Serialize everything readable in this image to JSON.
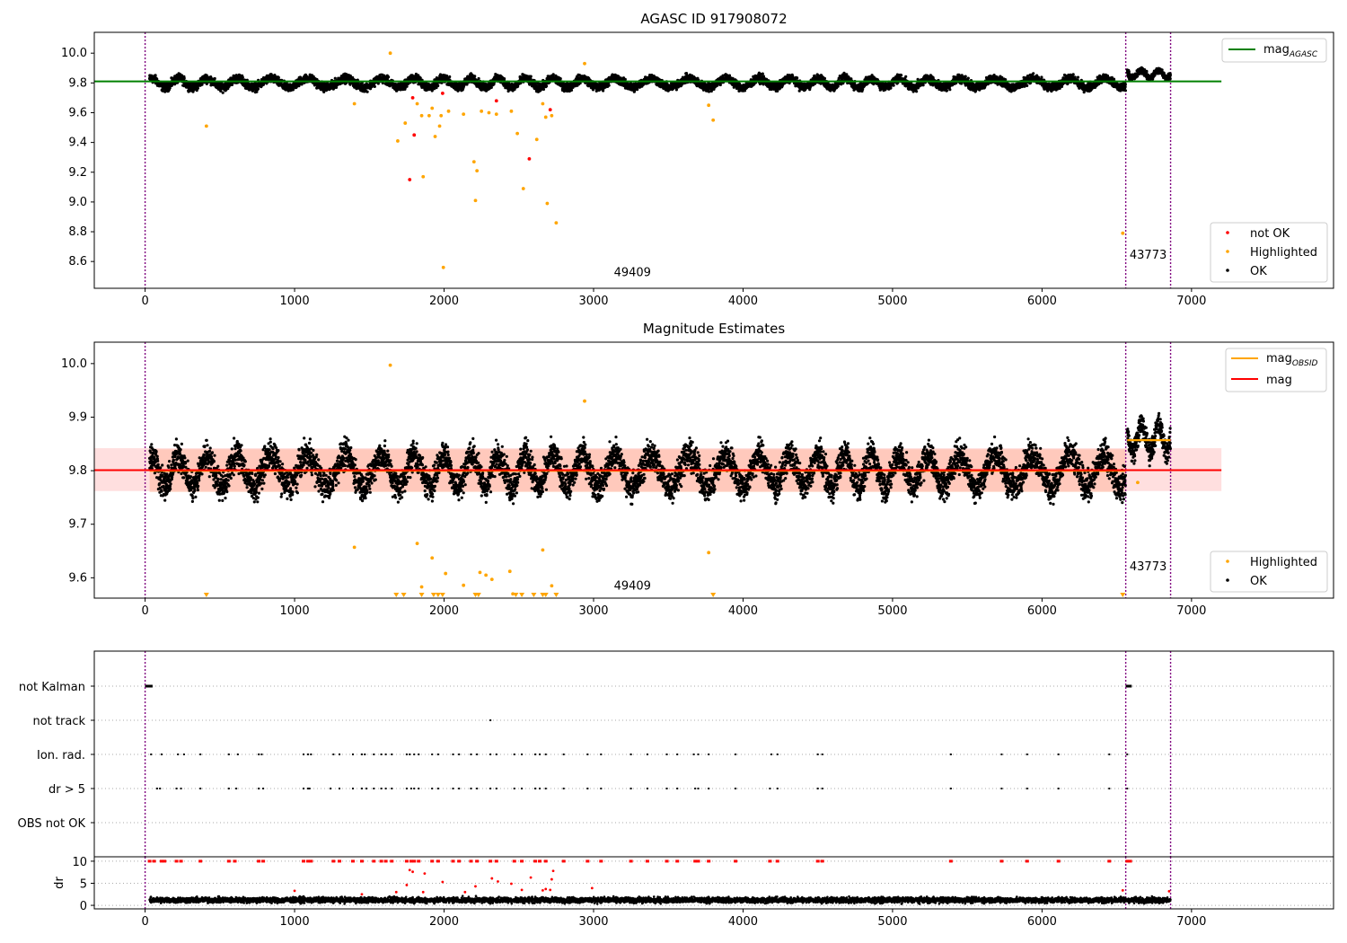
{
  "chart_data": [
    {
      "type": "scatter",
      "title": "AGASC ID 917908072",
      "xlabel": "",
      "ylabel": "",
      "xlim": [
        -340,
        7950
      ],
      "ylim": [
        8.42,
        10.14
      ],
      "xticks": [
        0,
        1000,
        2000,
        3000,
        4000,
        5000,
        6000,
        7000
      ],
      "yticks": [
        8.6,
        8.8,
        9.0,
        9.2,
        9.4,
        9.6,
        9.8,
        10.0
      ],
      "ytick_labels": [
        "8.6",
        "8.8",
        "9.0",
        "9.2",
        "9.4",
        "9.6",
        "9.8",
        "10.0"
      ],
      "grid": false,
      "reference_lines": [
        {
          "name": "mag_AGASC",
          "name_main": "mag",
          "name_sub": "AGASC",
          "value": 9.81,
          "x_range": [
            -340,
            7200
          ],
          "color": "#008000"
        }
      ],
      "obsid_boundaries": [
        0,
        6560,
        6860
      ],
      "obsid_labels": [
        {
          "text": "49409",
          "x": 3260,
          "y": 8.5
        },
        {
          "text": "43773",
          "x": 6710,
          "y": 8.62
        }
      ],
      "series": [
        {
          "name": "not OK",
          "color": "#ff0000",
          "points": [
            [
              1770,
              9.15
            ],
            [
              1800,
              9.45
            ],
            [
              1790,
              9.7
            ],
            [
              1990,
              9.73
            ],
            [
              2350,
              9.68
            ],
            [
              2570,
              9.29
            ],
            [
              2710,
              9.62
            ]
          ]
        },
        {
          "name": "Highlighted",
          "color": "#ffa500",
          "points": [
            [
              410,
              9.51
            ],
            [
              1400,
              9.66
            ],
            [
              1640,
              10.0
            ],
            [
              1690,
              9.41
            ],
            [
              1740,
              9.53
            ],
            [
              1820,
              9.66
            ],
            [
              1850,
              9.58
            ],
            [
              1860,
              9.17
            ],
            [
              1900,
              9.58
            ],
            [
              1920,
              9.63
            ],
            [
              1940,
              9.44
            ],
            [
              1970,
              9.51
            ],
            [
              1980,
              9.58
            ],
            [
              1995,
              8.56
            ],
            [
              2030,
              9.61
            ],
            [
              2130,
              9.59
            ],
            [
              2200,
              9.27
            ],
            [
              2210,
              9.01
            ],
            [
              2220,
              9.21
            ],
            [
              2250,
              9.61
            ],
            [
              2300,
              9.6
            ],
            [
              2350,
              9.59
            ],
            [
              2450,
              9.61
            ],
            [
              2490,
              9.46
            ],
            [
              2530,
              9.09
            ],
            [
              2620,
              9.42
            ],
            [
              2660,
              9.66
            ],
            [
              2680,
              9.57
            ],
            [
              2690,
              8.99
            ],
            [
              2720,
              9.58
            ],
            [
              2750,
              8.86
            ],
            [
              2940,
              9.93
            ],
            [
              3770,
              9.65
            ],
            [
              3800,
              9.55
            ],
            [
              6540,
              8.79
            ]
          ]
        },
        {
          "name": "OK",
          "color": "#000000",
          "band": {
            "x_range": [
              30,
              6560
            ],
            "baseline": 9.8,
            "amplitude": 0.05,
            "period": 210
          },
          "band2": {
            "x_range": [
              6570,
              6860
            ],
            "baseline": 9.86,
            "amplitude": 0.04,
            "period": 120
          }
        }
      ],
      "legends": [
        {
          "placement": "upper-right",
          "entries": [
            "mag_AGASC"
          ]
        },
        {
          "placement": "lower-right",
          "entries": [
            "not OK",
            "Highlighted",
            "OK"
          ]
        }
      ]
    },
    {
      "type": "scatter",
      "title": "Magnitude Estimates",
      "xlabel": "",
      "ylabel": "",
      "xlim": [
        -340,
        7950
      ],
      "ylim": [
        9.562,
        10.04
      ],
      "xticks": [
        0,
        1000,
        2000,
        3000,
        4000,
        5000,
        6000,
        7000
      ],
      "yticks": [
        9.6,
        9.7,
        9.8,
        9.9,
        10.0
      ],
      "ytick_labels": [
        "9.6",
        "9.7",
        "9.8",
        "9.9",
        "10.0"
      ],
      "grid": false,
      "reference_lines": [
        {
          "name": "mag_OBSID",
          "name_main": "mag",
          "name_sub": "OBSID",
          "color": "#ffa500",
          "segments": [
            [
              [
                30,
                6560
              ],
              9.8
            ],
            [
              [
                6570,
                6860
              ],
              9.857
            ]
          ],
          "band": {
            "lo": 9.76,
            "hi": 9.84,
            "x_range": [
              30,
              6560
            ],
            "color": "#ffa07a"
          }
        },
        {
          "name": "mag",
          "value": 9.801,
          "x_range": [
            -340,
            7200
          ],
          "color": "#ff0000",
          "band": {
            "lo": 9.762,
            "hi": 9.842,
            "color": "#ff8080"
          }
        }
      ],
      "obsid_boundaries": [
        0,
        6560,
        6860
      ],
      "obsid_labels": [
        {
          "text": "49409",
          "x": 3260,
          "y": 9.578
        },
        {
          "text": "43773",
          "x": 6710,
          "y": 9.614
        }
      ],
      "series": [
        {
          "name": "Highlighted",
          "color": "#ffa500",
          "points": [
            [
              1640,
              9.997
            ],
            [
              1400,
              9.657
            ],
            [
              1820,
              9.664
            ],
            [
              1850,
              9.583
            ],
            [
              1920,
              9.637
            ],
            [
              2010,
              9.608
            ],
            [
              2130,
              9.586
            ],
            [
              2240,
              9.61
            ],
            [
              2280,
              9.605
            ],
            [
              2320,
              9.597
            ],
            [
              2440,
              9.612
            ],
            [
              2460,
              9.57
            ],
            [
              2660,
              9.652
            ],
            [
              2720,
              9.585
            ],
            [
              2940,
              9.93
            ],
            [
              3770,
              9.647
            ],
            [
              6640,
              9.778
            ]
          ],
          "below_axis": [
            410,
            1680,
            1730,
            1850,
            1930,
            1960,
            1990,
            2210,
            2230,
            2480,
            2520,
            2600,
            2660,
            2680,
            2750,
            3800,
            6540
          ]
        },
        {
          "name": "OK",
          "color": "#000000",
          "band": {
            "x_range": [
              30,
              6560
            ],
            "baseline": 9.8,
            "amplitude": 0.05,
            "period": 210
          },
          "band2": {
            "x_range": [
              6570,
              6860
            ],
            "baseline": 9.86,
            "amplitude": 0.04,
            "period": 120
          }
        }
      ],
      "legends": [
        {
          "placement": "upper-right",
          "entries": [
            "mag_OBSID",
            "mag"
          ]
        },
        {
          "placement": "lower-right",
          "entries": [
            "Highlighted",
            "OK"
          ]
        }
      ]
    },
    {
      "type": "scatter",
      "title": "",
      "xlabel": "",
      "ylabel": "",
      "xlim": [
        -340,
        7950
      ],
      "categories": [
        "not Kalman",
        "not track",
        "Ion. rad.",
        "dr > 5",
        "OBS not OK"
      ],
      "grid": true,
      "obsid_boundaries": [
        0,
        6560,
        6860
      ],
      "flags": {
        "not Kalman": {
          "ranges": [
            [
              0,
              50
            ],
            [
              6560,
              6600
            ]
          ]
        },
        "not track": {
          "points": [
            2310
          ]
        },
        "Ion. rad.": {
          "points": [
            40,
            110,
            220,
            260,
            370,
            560,
            620,
            760,
            780,
            1060,
            1090,
            1110,
            1260,
            1300,
            1390,
            1450,
            1470,
            1530,
            1580,
            1610,
            1650,
            1750,
            1770,
            1800,
            1830,
            1920,
            1960,
            2060,
            2100,
            2180,
            2220,
            2310,
            2350,
            2470,
            2520,
            2610,
            2640,
            2680,
            2800,
            2960,
            3050,
            3250,
            3360,
            3490,
            3560,
            3670,
            3700,
            3770,
            3950,
            4190,
            4230,
            4500,
            4530,
            5390,
            5730,
            5900,
            6110,
            6450,
            6570
          ]
        },
        "dr > 5": {
          "points": [
            80,
            100,
            210,
            240,
            370,
            560,
            610,
            760,
            790,
            1060,
            1090,
            1100,
            1240,
            1300,
            1390,
            1450,
            1480,
            1530,
            1580,
            1610,
            1650,
            1750,
            1780,
            1800,
            1830,
            1920,
            1960,
            2060,
            2100,
            2180,
            2220,
            2310,
            2350,
            2470,
            2520,
            2610,
            2640,
            2680,
            2800,
            2960,
            3050,
            3250,
            3360,
            3490,
            3560,
            3680,
            3700,
            3770,
            3950,
            4180,
            4230,
            4500,
            4530,
            5390,
            5730,
            5900,
            6110,
            6450,
            6570
          ]
        },
        "OBS not OK": {
          "points": []
        }
      }
    },
    {
      "type": "scatter",
      "title": "",
      "xlabel": "",
      "ylabel": "dr",
      "xlim": [
        -340,
        7950
      ],
      "ylim": [
        -0.8,
        11
      ],
      "yticks": [
        0,
        5,
        10
      ],
      "ytick_labels": [
        "0",
        "5",
        "10"
      ],
      "grid": true,
      "clip_value": 10,
      "series": [
        {
          "name": "dr",
          "color": "#000000",
          "band": {
            "x_range": [
              30,
              6860
            ],
            "baseline": 1.2,
            "amplitude": 0.6
          }
        },
        {
          "name": "dr > 5",
          "color": "#ff0000",
          "points": [
            [
              1000,
              3.3
            ],
            [
              1450,
              2.5
            ],
            [
              1680,
              3.0
            ],
            [
              1750,
              4.6
            ],
            [
              1770,
              8.0
            ],
            [
              1790,
              7.6
            ],
            [
              1860,
              3.0
            ],
            [
              1870,
              7.2
            ],
            [
              1990,
              5.3
            ],
            [
              2140,
              3.0
            ],
            [
              2210,
              4.3
            ],
            [
              2320,
              6.1
            ],
            [
              2360,
              5.4
            ],
            [
              2450,
              4.9
            ],
            [
              2520,
              3.5
            ],
            [
              2580,
              6.3
            ],
            [
              2660,
              3.4
            ],
            [
              2680,
              3.7
            ],
            [
              2710,
              3.5
            ],
            [
              2720,
              5.9
            ],
            [
              2730,
              7.8
            ],
            [
              2990,
              3.9
            ],
            [
              6540,
              3.4
            ],
            [
              6850,
              3.2
            ]
          ],
          "at_clip": [
            30,
            60,
            110,
            130,
            210,
            240,
            370,
            560,
            600,
            760,
            790,
            1060,
            1090,
            1110,
            1260,
            1300,
            1390,
            1450,
            1530,
            1580,
            1610,
            1650,
            1750,
            1780,
            1800,
            1830,
            1920,
            1960,
            2060,
            2100,
            2180,
            2220,
            2310,
            2350,
            2470,
            2520,
            2610,
            2640,
            2680,
            2800,
            2960,
            3050,
            3250,
            3360,
            3490,
            3560,
            3680,
            3700,
            3770,
            3950,
            4180,
            4230,
            4500,
            4530,
            5390,
            5730,
            5900,
            6110,
            6450,
            6570,
            6590
          ]
        }
      ]
    }
  ]
}
